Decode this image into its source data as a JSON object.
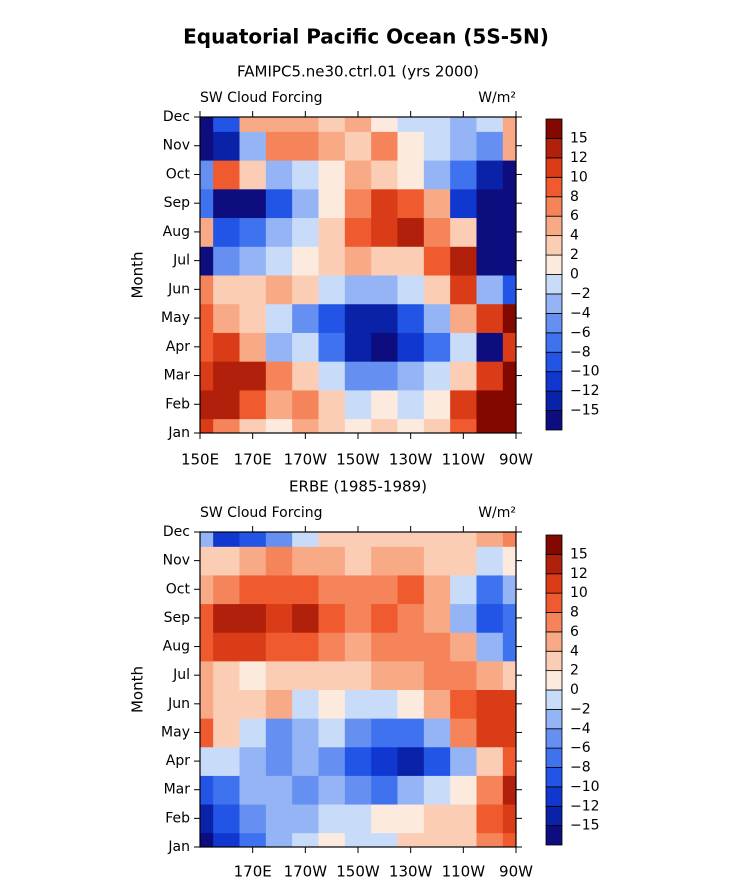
{
  "title": "Equatorial Pacific Ocean (5S-5N)",
  "chart_data": [
    {
      "type": "heatmap",
      "subtitle": "FAMIPC5.ne30.ctrl.01 (yrs 2000)",
      "left_label": "SW Cloud Forcing",
      "right_label": "W/m²",
      "y_label": "Month",
      "categories": [
        "Jan",
        "Feb",
        "Mar",
        "Apr",
        "May",
        "Jun",
        "Jul",
        "Aug",
        "Sep",
        "Oct",
        "Nov",
        "Dec"
      ],
      "x": [
        150,
        160,
        170,
        180,
        190,
        200,
        210,
        220,
        230,
        240,
        250,
        260,
        270
      ],
      "xlim": [
        150,
        270
      ],
      "xticks": [
        {
          "value": 150,
          "label": "150E"
        },
        {
          "value": 170,
          "label": "170E"
        },
        {
          "value": 190,
          "label": "170W"
        },
        {
          "value": 210,
          "label": "150W"
        },
        {
          "value": 230,
          "label": "130W"
        },
        {
          "value": 250,
          "label": "110W"
        },
        {
          "value": 270,
          "label": "90W"
        }
      ],
      "values": [
        [
          10,
          6,
          2,
          0,
          4,
          2,
          0,
          2,
          0,
          2,
          8,
          15,
          16
        ],
        [
          12,
          12,
          8,
          4,
          6,
          2,
          -2,
          0,
          -2,
          0,
          10,
          15,
          16
        ],
        [
          10,
          14,
          12,
          6,
          2,
          -2,
          -6,
          -6,
          -4,
          -2,
          2,
          10,
          16
        ],
        [
          8,
          10,
          4,
          -4,
          -2,
          -8,
          -13,
          -16,
          -12,
          -8,
          -2,
          -16,
          10
        ],
        [
          8,
          4,
          2,
          -2,
          -6,
          -10,
          -13,
          -14,
          -10,
          -4,
          4,
          10,
          16
        ],
        [
          6,
          2,
          2,
          4,
          2,
          -2,
          -4,
          -4,
          -2,
          2,
          10,
          -4,
          -10
        ],
        [
          -16,
          -6,
          -4,
          -2,
          0,
          2,
          4,
          2,
          2,
          8,
          14,
          -16,
          -16
        ],
        [
          4,
          -10,
          -8,
          -4,
          -2,
          2,
          8,
          10,
          12,
          6,
          2,
          -16,
          -16
        ],
        [
          -8,
          -16,
          -16,
          -10,
          -4,
          0,
          6,
          10,
          8,
          4,
          -12,
          -16,
          -16
        ],
        [
          -6,
          8,
          2,
          -4,
          -2,
          0,
          4,
          2,
          0,
          -4,
          -8,
          -14,
          -16
        ],
        [
          -16,
          -13,
          -4,
          6,
          6,
          4,
          2,
          6,
          0,
          -2,
          -4,
          -6,
          4
        ],
        [
          -16,
          -10,
          4,
          4,
          4,
          2,
          4,
          0,
          -2,
          -2,
          -4,
          -2,
          4
        ]
      ],
      "levels": [
        -15,
        -12,
        -10,
        -8,
        -6,
        -4,
        -2,
        0,
        2,
        4,
        6,
        8,
        10,
        12,
        15
      ],
      "colors": [
        "#0d0d80",
        "#0a22a8",
        "#1038d0",
        "#2255e6",
        "#3f72ee",
        "#6590f2",
        "#94b4f6",
        "#c8dcfa",
        "#fdeadf",
        "#fbcdb4",
        "#f8a985",
        "#f5845a",
        "#ef5a2e",
        "#d93c16",
        "#b0200a",
        "#820800"
      ]
    },
    {
      "type": "heatmap",
      "subtitle": "ERBE (1985-1989)",
      "left_label": "SW Cloud Forcing",
      "right_label": "W/m²",
      "y_label": "Month",
      "categories": [
        "Jan",
        "Feb",
        "Mar",
        "Apr",
        "May",
        "Jun",
        "Jul",
        "Aug",
        "Sep",
        "Oct",
        "Nov",
        "Dec"
      ],
      "x": [
        150,
        160,
        170,
        180,
        190,
        200,
        210,
        220,
        230,
        240,
        250,
        260,
        270
      ],
      "xlim": [
        150,
        270
      ],
      "xticks": [
        {
          "value": 170,
          "label": "170E"
        },
        {
          "value": 190,
          "label": "170W"
        },
        {
          "value": 210,
          "label": "150W"
        },
        {
          "value": 230,
          "label": "130W"
        },
        {
          "value": 250,
          "label": "110W"
        },
        {
          "value": 270,
          "label": "90W"
        }
      ],
      "values": [
        [
          -16,
          -12,
          -8,
          -4,
          -2,
          0,
          -2,
          -2,
          2,
          2,
          2,
          6,
          8
        ],
        [
          -14,
          -10,
          -6,
          -4,
          -4,
          -2,
          -2,
          0,
          0,
          2,
          2,
          8,
          10
        ],
        [
          -10,
          -8,
          -4,
          -4,
          -6,
          -4,
          -6,
          -8,
          -4,
          -2,
          0,
          6,
          12
        ],
        [
          -2,
          -2,
          -4,
          -6,
          -4,
          -6,
          -10,
          -12,
          -14,
          -10,
          -4,
          2,
          8
        ],
        [
          8,
          2,
          -2,
          -6,
          -4,
          -2,
          -6,
          -8,
          -8,
          -4,
          6,
          10,
          10
        ],
        [
          4,
          2,
          2,
          4,
          -2,
          0,
          -2,
          -2,
          0,
          4,
          8,
          10,
          10
        ],
        [
          4,
          2,
          0,
          2,
          2,
          2,
          2,
          4,
          4,
          6,
          6,
          4,
          2
        ],
        [
          8,
          10,
          10,
          8,
          8,
          6,
          4,
          6,
          6,
          6,
          4,
          -4,
          -8
        ],
        [
          8,
          12,
          12,
          10,
          12,
          8,
          6,
          8,
          6,
          4,
          -4,
          -10,
          -8
        ],
        [
          4,
          6,
          8,
          8,
          8,
          6,
          6,
          6,
          8,
          4,
          -2,
          -8,
          -4
        ],
        [
          2,
          2,
          4,
          6,
          4,
          4,
          2,
          4,
          4,
          2,
          2,
          -2,
          0
        ],
        [
          -4,
          -12,
          -10,
          -6,
          -2,
          2,
          2,
          2,
          2,
          2,
          2,
          4,
          6
        ]
      ],
      "levels": [
        -15,
        -12,
        -10,
        -8,
        -6,
        -4,
        -2,
        0,
        2,
        4,
        6,
        8,
        10,
        12,
        15
      ],
      "colors": [
        "#0d0d80",
        "#0a22a8",
        "#1038d0",
        "#2255e6",
        "#3f72ee",
        "#6590f2",
        "#94b4f6",
        "#c8dcfa",
        "#fdeadf",
        "#fbcdb4",
        "#f8a985",
        "#f5845a",
        "#ef5a2e",
        "#d93c16",
        "#b0200a",
        "#820800"
      ]
    }
  ]
}
